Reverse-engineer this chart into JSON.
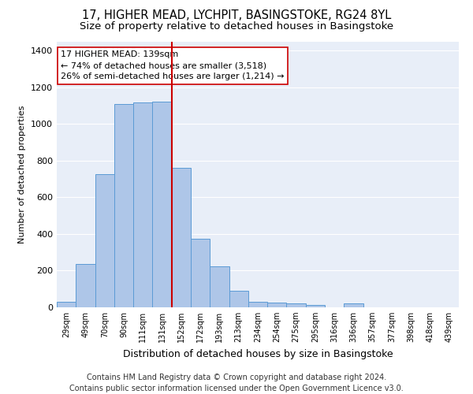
{
  "title_line1": "17, HIGHER MEAD, LYCHPIT, BASINGSTOKE, RG24 8YL",
  "title_line2": "Size of property relative to detached houses in Basingstoke",
  "xlabel": "Distribution of detached houses by size in Basingstoke",
  "ylabel": "Number of detached properties",
  "categories": [
    "29sqm",
    "49sqm",
    "70sqm",
    "90sqm",
    "111sqm",
    "131sqm",
    "152sqm",
    "172sqm",
    "193sqm",
    "213sqm",
    "234sqm",
    "254sqm",
    "275sqm",
    "295sqm",
    "316sqm",
    "336sqm",
    "357sqm",
    "377sqm",
    "398sqm",
    "418sqm",
    "439sqm"
  ],
  "values": [
    30,
    235,
    725,
    1110,
    1115,
    1120,
    760,
    375,
    225,
    90,
    30,
    25,
    20,
    15,
    0,
    20,
    0,
    0,
    0,
    0,
    0
  ],
  "bar_color": "#aec6e8",
  "bar_edge_color": "#5b9bd5",
  "vline_x": 5.5,
  "vline_color": "#cc0000",
  "annotation_text": "17 HIGHER MEAD: 139sqm\n← 74% of detached houses are smaller (3,518)\n26% of semi-detached houses are larger (1,214) →",
  "annotation_box_color": "#ffffff",
  "annotation_box_edge_color": "#cc0000",
  "ylim": [
    0,
    1450
  ],
  "yticks": [
    0,
    200,
    400,
    600,
    800,
    1000,
    1200,
    1400
  ],
  "plot_bg_color": "#e8eef8",
  "footer_line1": "Contains HM Land Registry data © Crown copyright and database right 2024.",
  "footer_line2": "Contains public sector information licensed under the Open Government Licence v3.0.",
  "title_fontsize": 10.5,
  "subtitle_fontsize": 9.5,
  "annotation_fontsize": 8,
  "footer_fontsize": 7,
  "ylabel_fontsize": 8,
  "xlabel_fontsize": 9
}
